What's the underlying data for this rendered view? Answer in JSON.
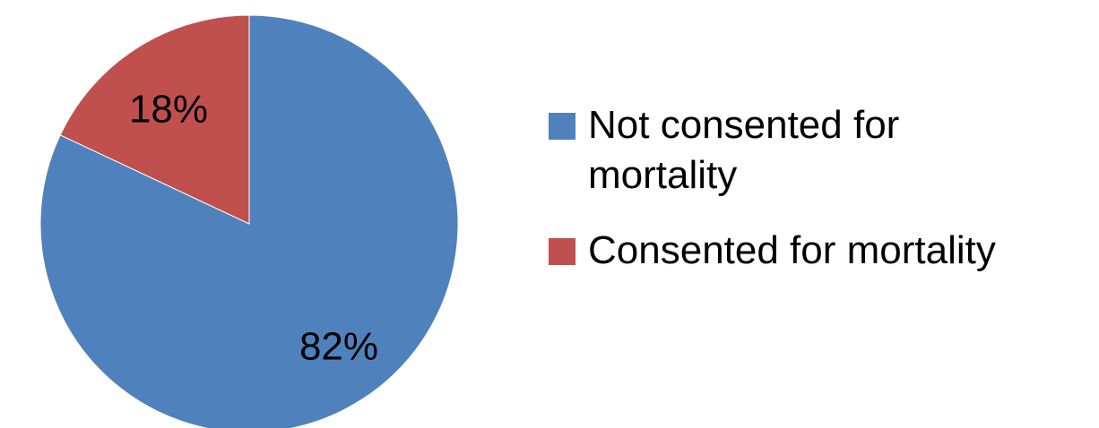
{
  "chart_data": {
    "type": "pie",
    "title": "",
    "start_angle_deg": 0,
    "direction": "clockwise",
    "slices": [
      {
        "name": "Not consented for mortality",
        "value": 82,
        "label": "82%",
        "color": "#4F81BD"
      },
      {
        "name": "Consented for mortality",
        "value": 18,
        "label": "18%",
        "color": "#C0504D"
      }
    ],
    "legend": {
      "position": "right"
    }
  }
}
